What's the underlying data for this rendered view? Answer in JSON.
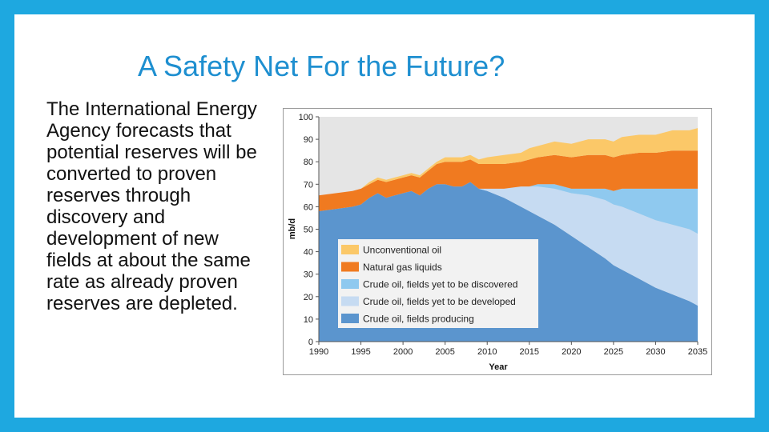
{
  "slide": {
    "title": "A Safety Net For the Future?",
    "body": "The International Energy Agency forecasts that potential reserves will be converted to proven reserves through discovery and development of new fields at about the same rate as already proven reserves are depleted."
  },
  "colors": {
    "frame": "#1ea8e0",
    "title": "#1e8fd0",
    "plot_bg": "#e5e5e5"
  },
  "chart_data": {
    "type": "area",
    "stacked": true,
    "title": "",
    "xlabel": "Year",
    "ylabel": "mb/d",
    "xlim": [
      1990,
      2035
    ],
    "ylim": [
      0,
      100
    ],
    "xticks": [
      "1990",
      "1995",
      "2000",
      "2005",
      "2010",
      "2015",
      "2020",
      "2025",
      "2030",
      "2035"
    ],
    "yticks": [
      "0",
      "10",
      "20",
      "30",
      "40",
      "50",
      "60",
      "70",
      "80",
      "90",
      "100"
    ],
    "x": [
      1990,
      1992,
      1994,
      1995,
      1996,
      1997,
      1998,
      1999,
      2000,
      2001,
      2002,
      2003,
      2004,
      2005,
      2006,
      2007,
      2008,
      2009,
      2010,
      2012,
      2014,
      2015,
      2016,
      2018,
      2020,
      2022,
      2024,
      2025,
      2026,
      2028,
      2030,
      2032,
      2034,
      2035
    ],
    "series": [
      {
        "name": "Crude oil, fields producing",
        "color": "#5b95ce",
        "values": [
          58,
          59,
          60,
          61,
          64,
          66,
          64,
          65,
          66,
          67,
          65,
          68,
          70,
          70,
          69,
          69,
          71,
          68,
          67,
          64,
          60,
          58,
          56,
          52,
          47,
          42,
          37,
          34,
          32,
          28,
          24,
          21,
          18,
          16
        ]
      },
      {
        "name": "Crude oil, fields yet to be developed",
        "color": "#c6dbf2",
        "values": [
          0,
          0,
          0,
          0,
          0,
          0,
          0,
          0,
          0,
          0,
          0,
          0,
          0,
          0,
          0,
          0,
          0,
          0,
          1,
          4,
          9,
          11,
          13,
          16,
          19,
          23,
          26,
          27,
          28,
          29,
          30,
          31,
          32,
          32
        ]
      },
      {
        "name": "Crude oil, fields yet to be discovered",
        "color": "#8fc9ef",
        "values": [
          0,
          0,
          0,
          0,
          0,
          0,
          0,
          0,
          0,
          0,
          0,
          0,
          0,
          0,
          0,
          0,
          0,
          0,
          0,
          0,
          0,
          0,
          1,
          2,
          2,
          3,
          5,
          6,
          8,
          11,
          14,
          16,
          18,
          20
        ]
      },
      {
        "name": "Natural gas liquids",
        "color": "#f07a20",
        "values": [
          7,
          7,
          7,
          7,
          6,
          6,
          7,
          7,
          7,
          7,
          8,
          8,
          9,
          10,
          11,
          11,
          10,
          11,
          11,
          11,
          11,
          12,
          12,
          13,
          14,
          15,
          15,
          15,
          15,
          16,
          16,
          17,
          17,
          17
        ]
      },
      {
        "name": "Unconventional oil",
        "color": "#fbc868",
        "values": [
          0,
          0,
          0,
          0,
          1,
          1,
          1,
          1,
          1,
          1,
          1,
          1,
          1,
          2,
          2,
          2,
          2,
          2,
          3,
          4,
          4,
          5,
          5,
          6,
          6,
          7,
          7,
          7,
          8,
          8,
          8,
          9,
          9,
          10
        ]
      }
    ],
    "legend": {
      "position": "center",
      "entries": [
        {
          "label": "Unconventional oil",
          "color": "#fbc868"
        },
        {
          "label": "Natural gas liquids",
          "color": "#f07a20"
        },
        {
          "label": "Crude oil, fields yet to be discovered",
          "color": "#8fc9ef"
        },
        {
          "label": "Crude oil, fields yet to be developed",
          "color": "#c6dbf2"
        },
        {
          "label": "Crude oil, fields producing",
          "color": "#5b95ce"
        }
      ]
    }
  }
}
